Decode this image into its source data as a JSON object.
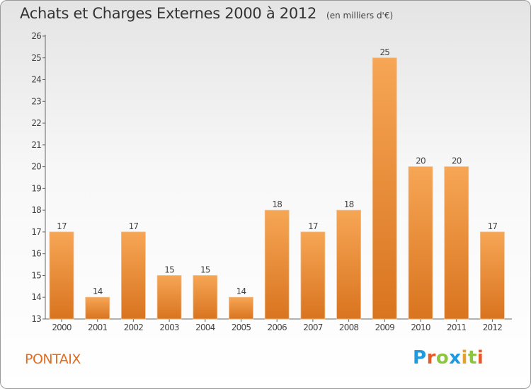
{
  "header": {
    "title": "Achats et Charges Externes 2000 à 2012",
    "subtitle": "(en milliers d'€)"
  },
  "footer": {
    "commune": "PONTAIX",
    "logo_text": "Proxiti"
  },
  "colors": {
    "bar_top": "#f6a655",
    "bar_bottom": "#d9741f",
    "commune": "#e36c1e",
    "logo_letters": [
      "#1e9be0",
      "#e65a2a",
      "#8cc63f",
      "#1e9be0",
      "#e6a12a",
      "#8cc63f",
      "#e65a2a"
    ]
  },
  "chart_data": {
    "type": "bar",
    "categories": [
      "2000",
      "2001",
      "2002",
      "2003",
      "2004",
      "2005",
      "2006",
      "2007",
      "2008",
      "2009",
      "2010",
      "2011",
      "2012"
    ],
    "values": [
      17,
      14,
      17,
      15,
      15,
      14,
      18,
      17,
      18,
      25,
      20,
      20,
      17
    ],
    "title": "Achats et Charges Externes 2000 à 2012",
    "subtitle": "(en milliers d'€)",
    "xlabel": "",
    "ylabel": "",
    "ylim": [
      13,
      26
    ],
    "yticks": [
      13,
      14,
      15,
      16,
      17,
      18,
      19,
      20,
      21,
      22,
      23,
      24,
      25,
      26
    ],
    "grid": false,
    "data_labels": true
  }
}
